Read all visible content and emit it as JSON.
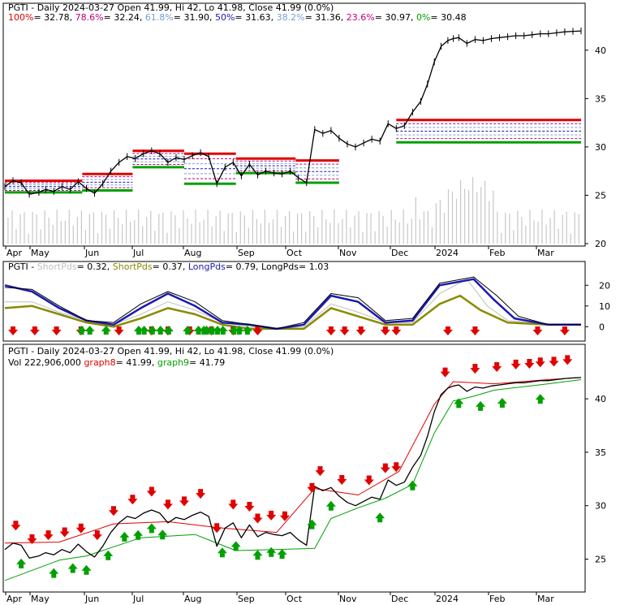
{
  "colors": {
    "up": "#00a000",
    "down": "#e00000",
    "price": "#000000",
    "volume": "#c8c8c8",
    "fib100": "#e00000",
    "fib786": "#c0007c",
    "fib618": "#7aa0d0",
    "fib50": "#1a1ab0",
    "fib382": "#7aa0d0",
    "fib236": "#c0007c",
    "fib0": "#00a000",
    "short1": "#c0c0c0",
    "short2": "#8a8a00",
    "long1": "#1a1ab0",
    "long2": "#000000",
    "graph8": "#e00000",
    "graph9": "#00a000"
  },
  "x_axis": {
    "months": [
      "Apr",
      "May",
      "Jun",
      "Jul",
      "Aug",
      "Sep",
      "Oct",
      "Nov",
      "Dec",
      "2024",
      "Feb",
      "Mar"
    ]
  },
  "chart_data": [
    {
      "type": "line",
      "title": "PGTI - Daily 2024-03-27 Open 41.99, Hi 42, Lo 41.98, Close 41.99 (0.0%)",
      "legend": [
        {
          "label": "100%",
          "value": "= 32.78,",
          "color": "#e00000"
        },
        {
          "label": "78.6%",
          "value": "= 32.24,",
          "color": "#c0007c"
        },
        {
          "label": "61.8%",
          "value": "= 31.90,",
          "color": "#7aa0d0"
        },
        {
          "label": "50%",
          "value": "= 31.63,",
          "color": "#1a1ab0"
        },
        {
          "label": "38.2%",
          "value": "= 31.36,",
          "color": "#7aa0d0"
        },
        {
          "label": "23.6%",
          "value": "= 30.97,",
          "color": "#c0007c"
        },
        {
          "label": "0%",
          "value": "= 30.48",
          "color": "#00a000"
        }
      ],
      "y_ticks": [
        "40",
        "35",
        "30",
        "25",
        "20"
      ],
      "ylim": [
        20,
        42
      ],
      "close_path": [
        [
          0,
          25.9
        ],
        [
          6,
          26.5
        ],
        [
          12,
          26.3
        ],
        [
          18,
          25.1
        ],
        [
          25,
          25.3
        ],
        [
          30,
          25.6
        ],
        [
          36,
          25.4
        ],
        [
          42,
          25.9
        ],
        [
          48,
          25.6
        ],
        [
          54,
          26.4
        ],
        [
          60,
          25.7
        ],
        [
          66,
          25.2
        ],
        [
          72,
          26.2
        ],
        [
          78,
          27.5
        ],
        [
          84,
          28.4
        ],
        [
          90,
          29.0
        ],
        [
          96,
          28.8
        ],
        [
          102,
          29.3
        ],
        [
          108,
          29.6
        ],
        [
          114,
          29.3
        ],
        [
          120,
          28.4
        ],
        [
          126,
          28.9
        ],
        [
          132,
          28.7
        ],
        [
          138,
          29.1
        ],
        [
          144,
          29.4
        ],
        [
          150,
          29.0
        ],
        [
          156,
          26.2
        ],
        [
          162,
          27.9
        ],
        [
          168,
          28.4
        ],
        [
          174,
          27.0
        ],
        [
          180,
          28.2
        ],
        [
          186,
          27.1
        ],
        [
          192,
          27.5
        ],
        [
          198,
          27.3
        ],
        [
          204,
          27.2
        ],
        [
          210,
          27.5
        ],
        [
          216,
          26.8
        ],
        [
          222,
          26.3
        ],
        [
          228,
          31.8
        ],
        [
          234,
          31.4
        ],
        [
          240,
          31.7
        ],
        [
          246,
          30.9
        ],
        [
          252,
          30.3
        ],
        [
          258,
          30.0
        ],
        [
          264,
          30.4
        ],
        [
          270,
          30.8
        ],
        [
          276,
          30.6
        ],
        [
          282,
          32.4
        ],
        [
          288,
          31.9
        ],
        [
          294,
          32.2
        ],
        [
          300,
          33.6
        ],
        [
          306,
          34.7
        ],
        [
          311,
          36.5
        ],
        [
          316,
          38.8
        ],
        [
          321,
          40.4
        ],
        [
          326,
          41.0
        ],
        [
          330,
          41.2
        ],
        [
          334,
          41.3
        ],
        [
          340,
          40.7
        ],
        [
          346,
          41.1
        ],
        [
          352,
          41.0
        ],
        [
          358,
          41.2
        ],
        [
          364,
          41.3
        ],
        [
          370,
          41.4
        ],
        [
          376,
          41.5
        ],
        [
          382,
          41.5
        ],
        [
          388,
          41.6
        ],
        [
          394,
          41.7
        ],
        [
          400,
          41.7
        ],
        [
          406,
          41.8
        ],
        [
          412,
          41.9
        ],
        [
          418,
          41.95
        ],
        [
          424,
          41.99
        ]
      ]
    },
    {
      "type": "line",
      "title": "PGTI - ShortPds = 0.32, ShortPds = 0.37, LongPds = 0.79, LongPds = 1.03",
      "legend": [
        {
          "label": "ShortPds",
          "value": "= 0.32,",
          "color": "#c0c0c0"
        },
        {
          "label": "ShortPds",
          "value": "= 0.37,",
          "color": "#8a8a00"
        },
        {
          "label": "LongPds",
          "value": "= 0.79,",
          "color": "#1a1ab0"
        },
        {
          "label": "LongPds",
          "value": "= 1.03",
          "color": "#000000"
        }
      ],
      "y_ticks": [
        "20",
        "10",
        "0"
      ],
      "ylim": [
        -3,
        26
      ],
      "series": [
        {
          "values": [
            [
              0,
              12
            ],
            [
              20,
              12
            ],
            [
              40,
              7
            ],
            [
              60,
              3
            ],
            [
              80,
              1
            ],
            [
              100,
              6
            ],
            [
              120,
              12
            ],
            [
              140,
              8
            ],
            [
              160,
              2
            ],
            [
              180,
              0
            ],
            [
              200,
              -1
            ],
            [
              220,
              0
            ],
            [
              240,
              11
            ],
            [
              260,
              7
            ],
            [
              280,
              2
            ],
            [
              300,
              2
            ],
            [
              320,
              16
            ],
            [
              340,
              23
            ],
            [
              355,
              10
            ],
            [
              370,
              3
            ],
            [
              400,
              1
            ],
            [
              424,
              1
            ]
          ]
        },
        {
          "values": [
            [
              0,
              9
            ],
            [
              20,
              10
            ],
            [
              40,
              6
            ],
            [
              60,
              2
            ],
            [
              80,
              0
            ],
            [
              100,
              4
            ],
            [
              120,
              9
            ],
            [
              140,
              6
            ],
            [
              160,
              1
            ],
            [
              180,
              -1
            ],
            [
              200,
              -1
            ],
            [
              220,
              -1
            ],
            [
              240,
              9
            ],
            [
              260,
              5
            ],
            [
              280,
              1
            ],
            [
              300,
              1
            ],
            [
              320,
              11
            ],
            [
              335,
              15
            ],
            [
              350,
              8
            ],
            [
              370,
              2
            ],
            [
              400,
              1
            ],
            [
              424,
              1
            ]
          ]
        },
        {
          "values": [
            [
              0,
              20
            ],
            [
              20,
              17
            ],
            [
              40,
              9
            ],
            [
              60,
              3
            ],
            [
              80,
              1
            ],
            [
              100,
              9
            ],
            [
              120,
              16
            ],
            [
              140,
              10
            ],
            [
              160,
              2
            ],
            [
              180,
              1
            ],
            [
              200,
              -1
            ],
            [
              220,
              1
            ],
            [
              240,
              15
            ],
            [
              260,
              12
            ],
            [
              280,
              2
            ],
            [
              300,
              3
            ],
            [
              320,
              20
            ],
            [
              345,
              23
            ],
            [
              360,
              13
            ],
            [
              375,
              4
            ],
            [
              400,
              1
            ],
            [
              424,
              1
            ]
          ]
        },
        {
          "values": [
            [
              0,
              19
            ],
            [
              20,
              18
            ],
            [
              40,
              10
            ],
            [
              60,
              3
            ],
            [
              80,
              2
            ],
            [
              100,
              11
            ],
            [
              120,
              17
            ],
            [
              140,
              12
            ],
            [
              160,
              3
            ],
            [
              180,
              1
            ],
            [
              200,
              -1
            ],
            [
              220,
              2
            ],
            [
              240,
              16
            ],
            [
              260,
              14
            ],
            [
              280,
              3
            ],
            [
              300,
              4
            ],
            [
              320,
              21
            ],
            [
              345,
              24
            ],
            [
              362,
              15
            ],
            [
              378,
              5
            ],
            [
              400,
              1
            ],
            [
              424,
              1
            ]
          ]
        }
      ]
    },
    {
      "type": "line",
      "title": "PGTI - Daily 2024-03-27 Open 41.99, Hi 42, Lo 41.98, Close 41.99 (0.0%)",
      "subtitle_items": [
        {
          "label": "Vol 222,906,000",
          "value": "",
          "color": "#000000"
        },
        {
          "label": "graph8",
          "value": "= 41.99,",
          "color": "#e00000"
        },
        {
          "label": "graph9",
          "value": "= 41.79",
          "color": "#00a000"
        }
      ],
      "y_ticks": [
        "40",
        "35",
        "30",
        "25"
      ],
      "ylim": [
        22,
        43.5
      ],
      "graph8": [
        [
          0,
          26.5
        ],
        [
          40,
          26.6
        ],
        [
          80,
          28.3
        ],
        [
          120,
          28.5
        ],
        [
          160,
          27.9
        ],
        [
          200,
          27.5
        ],
        [
          228,
          31.6
        ],
        [
          260,
          31.0
        ],
        [
          290,
          33.2
        ],
        [
          316,
          39.5
        ],
        [
          330,
          41.6
        ],
        [
          360,
          41.4
        ],
        [
          400,
          41.8
        ],
        [
          424,
          41.99
        ]
      ],
      "graph9": [
        [
          0,
          23.0
        ],
        [
          40,
          24.9
        ],
        [
          60,
          25.3
        ],
        [
          100,
          27.0
        ],
        [
          140,
          27.3
        ],
        [
          170,
          25.8
        ],
        [
          228,
          26.0
        ],
        [
          240,
          28.8
        ],
        [
          260,
          29.8
        ],
        [
          280,
          30.7
        ],
        [
          300,
          32.0
        ],
        [
          316,
          36.8
        ],
        [
          330,
          39.8
        ],
        [
          344,
          40.2
        ],
        [
          360,
          40.8
        ],
        [
          400,
          41.4
        ],
        [
          424,
          41.79
        ]
      ],
      "down_arrows": [
        8,
        20,
        32,
        44,
        56,
        68,
        80,
        94,
        108,
        120,
        132,
        144,
        156,
        168,
        180,
        186,
        196,
        206,
        226,
        232,
        248,
        268,
        280,
        288,
        324,
        346,
        362,
        376,
        386,
        394,
        404,
        414
      ],
      "up_arrows": [
        12,
        36,
        50,
        60,
        76,
        88,
        98,
        108,
        116,
        160,
        170,
        186,
        196,
        204,
        226,
        240,
        276,
        300,
        334,
        350,
        366,
        394
      ]
    }
  ]
}
